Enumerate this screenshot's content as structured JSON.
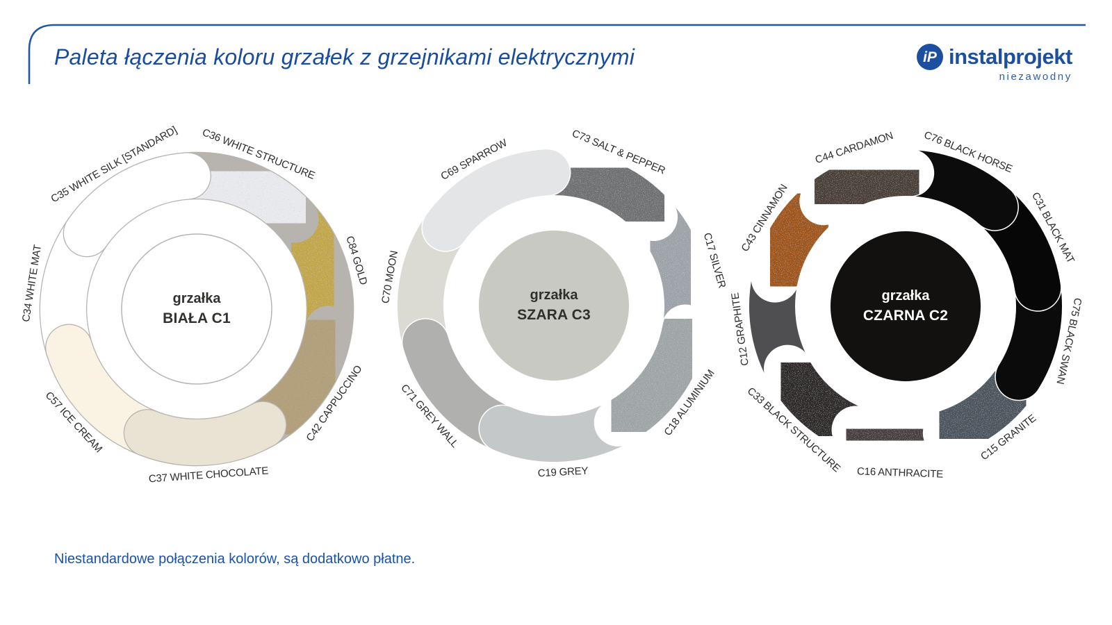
{
  "header": {
    "title": "Paleta łączenia koloru grzałek z grzejnikami elektrycznymi",
    "logo": {
      "monogram": "iP",
      "name": "instalprojekt",
      "tagline": "niezawodny"
    },
    "accent_color": "#1d4fa1"
  },
  "footer": {
    "note": "Niestandardowe połączenia kolorów, są dodatkowo płatne."
  },
  "donuts": [
    {
      "id": "biala-c1",
      "center_line1": "grzałka",
      "center_line2": "BIAŁA C1",
      "center_fill": "#ffffff",
      "center_stroke": "#b7b4b0",
      "center_text": "#33312e",
      "divider": "#b7b4b0",
      "segments": [
        {
          "label": "C36 WHITE STRUCTURE",
          "color": "#e9eaee",
          "start": -4,
          "end": 47.4,
          "z": 6,
          "texture": "dark"
        },
        {
          "label": "C84 GOLD",
          "color": "#c1a64c",
          "start": 47.4,
          "end": 98.9,
          "z": 1,
          "texture": "light"
        },
        {
          "label": "C42 CAPPUCCINO",
          "color": "#b3a27d",
          "start": 98.9,
          "end": 150.3,
          "z": 2,
          "texture": "dark"
        },
        {
          "label": "C37 WHITE CHOCOLATE",
          "color": "#e9e3d3",
          "start": 150.3,
          "end": 201.7,
          "z": 5,
          "texture": null
        },
        {
          "label": "C57 ICE CREAM",
          "color": "#faf3e3",
          "start": 201.7,
          "end": 253.1,
          "z": 4,
          "texture": null
        },
        {
          "label": "C34 WHITE MAT",
          "color": "#ffffff",
          "start": 253.1,
          "end": 304.6,
          "z": 3,
          "texture": null
        },
        {
          "label": "C35 WHITE SILK [STANDARD]",
          "color": "#ffffff",
          "start": 304.6,
          "end": 356,
          "z": 7,
          "texture": null
        }
      ]
    },
    {
      "id": "szara-c3",
      "center_line1": "grzałka",
      "center_line2": "SZARA C3",
      "center_fill": "#c9c9c4",
      "center_stroke": null,
      "center_text": "#2f2f2d",
      "divider": "#ffffff",
      "segments": [
        {
          "label": "C73 SALT & PEPPER",
          "color": "#6f7173",
          "start": -3,
          "end": 48.4,
          "z": 6,
          "texture": "light"
        },
        {
          "label": "C17 SILVER",
          "color": "#9da3a8",
          "start": 48.4,
          "end": 99.9,
          "z": 1,
          "texture": "light"
        },
        {
          "label": "C18 ALUMINIUM",
          "color": "#9fa5a6",
          "start": 99.9,
          "end": 151.3,
          "z": 5,
          "texture": "light"
        },
        {
          "label": "C19 GREY",
          "color": "#c5c8c9",
          "start": 151.3,
          "end": 202.7,
          "z": 4,
          "texture": null
        },
        {
          "label": "C71 GREY WALL",
          "color": "#b0b0ae",
          "start": 202.7,
          "end": 254.1,
          "z": 3,
          "texture": null
        },
        {
          "label": "C70 MOON",
          "color": "#dbdad3",
          "start": 254.1,
          "end": 305.6,
          "z": 2,
          "texture": null
        },
        {
          "label": "C69 SPARROW",
          "color": "#e4e5e7",
          "start": 305.6,
          "end": 357,
          "z": 7,
          "texture": null
        }
      ]
    },
    {
      "id": "czarna-c2",
      "center_line1": "grzałka",
      "center_line2": "CZARNA C2",
      "center_fill": "#121110",
      "center_stroke": null,
      "center_text": "#ffffff",
      "divider": "#ffffff",
      "segments": [
        {
          "label": "C76 BLACK HORSE",
          "color": "#0c0c0c",
          "start": 2,
          "end": 42,
          "z": 7,
          "texture": null
        },
        {
          "label": "C31 BLACK MAT",
          "color": "#070707",
          "start": 42,
          "end": 82,
          "z": 6,
          "texture": null
        },
        {
          "label": "C75 BLACK SWAN",
          "color": "#0b0b0c",
          "start": 82,
          "end": 122,
          "z": 5,
          "texture": null
        },
        {
          "label": "C15 GRANITE",
          "color": "#4e565e",
          "start": 122,
          "end": 162,
          "z": 4,
          "texture": "light"
        },
        {
          "label": "C16 ANTHRACITE",
          "color": "#46403f",
          "start": 162,
          "end": 202,
          "z": 3,
          "texture": "light"
        },
        {
          "label": "C33 BLACK STRUCTURE",
          "color": "#2e2a29",
          "start": 202,
          "end": 242,
          "z": 2,
          "texture": "light"
        },
        {
          "label": "C12 GRAPHITE",
          "color": "#4f4e50",
          "start": 242,
          "end": 282,
          "z": 1,
          "texture": null
        },
        {
          "label": "C43 CINNAMON",
          "color": "#9e561e",
          "start": 282,
          "end": 322,
          "z": 8,
          "texture": "light"
        },
        {
          "label": "C44 CARDAMON",
          "color": "#4a4138",
          "start": 322,
          "end": 362,
          "z": 9,
          "texture": "light"
        }
      ]
    }
  ]
}
